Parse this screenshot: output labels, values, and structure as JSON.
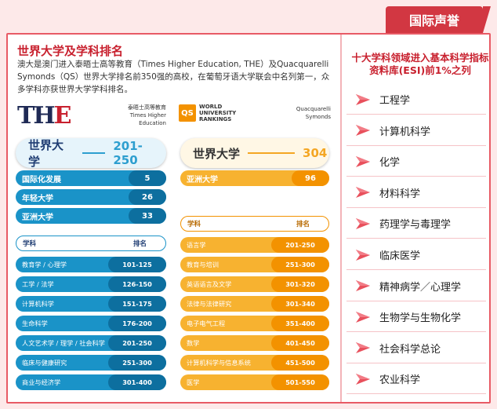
{
  "badge": "国际声誉",
  "heading": "世界大学及学科排名",
  "description": "澳大是澳门进入泰晤士高等教育（Times Higher Education, THE）及Quacquarelli Symonds（QS）世界大学排名前350强的高校，在葡萄牙语大学联会中名列第一，众多学科亦获世界大学学科排名。",
  "the": {
    "logo": "THE",
    "sub_cn": "泰晤士高等教育",
    "sub_en": "Times Higher Education",
    "world_label": "世界大学",
    "world_rank": "201-250",
    "stats": [
      {
        "label": "国际化发展",
        "value": "5"
      },
      {
        "label": "年轻大学",
        "value": "26"
      },
      {
        "label": "亚洲大学",
        "value": "33"
      }
    ],
    "table_head": {
      "subject": "学科",
      "rank": "排名"
    },
    "rows": [
      {
        "subject": "教育学 / 心理学",
        "rank": "101-125"
      },
      {
        "subject": "工学 / 法学",
        "rank": "126-150"
      },
      {
        "subject": "计算机科学",
        "rank": "151-175"
      },
      {
        "subject": "生命科学",
        "rank": "176-200"
      },
      {
        "subject": "人文艺术学 / 理学 / 社会科学",
        "rank": "201-250"
      },
      {
        "subject": "临床与健康研究",
        "rank": "251-300"
      },
      {
        "subject": "商业与经济学",
        "rank": "301-400"
      }
    ]
  },
  "qs": {
    "logo": "QS",
    "logo_text": [
      "WORLD",
      "UNIVERSITY",
      "RANKINGS"
    ],
    "sub1": "Quacquarelli",
    "sub2": "Symonds",
    "world_label": "世界大学",
    "world_rank": "304",
    "stats": [
      {
        "label": "亚洲大学",
        "value": "96"
      }
    ],
    "table_head": {
      "subject": "学科",
      "rank": "排名"
    },
    "rows": [
      {
        "subject": "语言学",
        "rank": "201-250"
      },
      {
        "subject": "教育与培训",
        "rank": "251-300"
      },
      {
        "subject": "英语语言及文学",
        "rank": "301-320"
      },
      {
        "subject": "法律与法律研究",
        "rank": "301-340"
      },
      {
        "subject": "电子电气工程",
        "rank": "351-400"
      },
      {
        "subject": "数学",
        "rank": "401-450"
      },
      {
        "subject": "计算机科学与信息系统",
        "rank": "451-500"
      },
      {
        "subject": "医学",
        "rank": "501-550"
      }
    ]
  },
  "esi": {
    "title": "十大学科领域进入基本科学指标资料库(ESI)前1%之列",
    "items": [
      "工程学",
      "计算机科学",
      "化学",
      "材料科学",
      "药理学与毒理学",
      "临床医学",
      "精神病学／心理学",
      "生物学与生物化学",
      "社会科学总论",
      "农业科学"
    ]
  }
}
